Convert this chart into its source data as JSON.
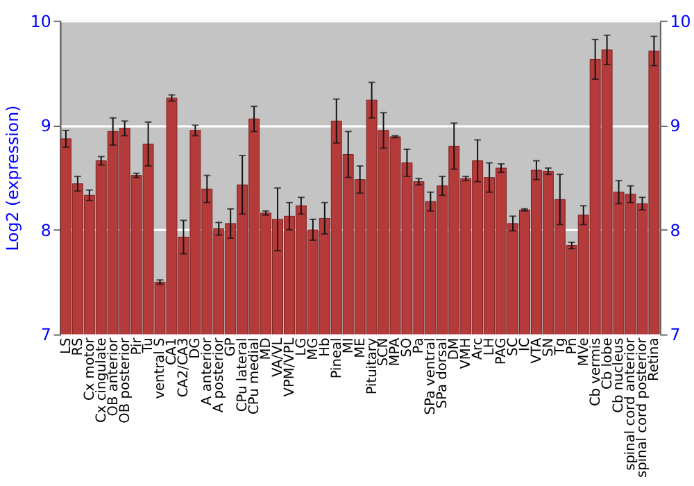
{
  "chart_data": {
    "type": "bar",
    "ylabel": "Log2 (expression)",
    "categories": [
      "LS",
      "RS",
      "Cx motor",
      "Cx cingulate",
      "OB anterior",
      "OB posterior",
      "Pir",
      "Tu",
      "ventral S",
      "CA1",
      "CA2/CA3",
      "DG",
      "A anterior",
      "A posterior",
      "GP",
      "CPu lateral",
      "CPu medial",
      "MD",
      "VA/VL",
      "VPM/VPL",
      "LG",
      "MG",
      "Hb",
      "Pineal",
      "MI",
      "ME",
      "Pituitary",
      "SCN",
      "MPA",
      "SO",
      "Pa",
      "SPa ventral",
      "SPa dorsal",
      "DM",
      "VMH",
      "Arc",
      "LH",
      "PAG",
      "SC",
      "IC",
      "VTA",
      "SN",
      "Tg",
      "Pn",
      "MVe",
      "Cb vermis",
      "Cb lobe",
      "Cb nucleus",
      "spinal cord anterior",
      "spinal cord posterior",
      "Retina"
    ],
    "values": [
      8.87,
      8.44,
      8.33,
      8.66,
      8.94,
      8.97,
      8.52,
      8.82,
      7.5,
      9.26,
      7.93,
      8.95,
      8.39,
      8.01,
      8.06,
      8.43,
      9.06,
      8.16,
      8.1,
      8.13,
      8.23,
      8.0,
      8.11,
      9.04,
      8.72,
      8.48,
      9.24,
      8.95,
      8.89,
      8.64,
      8.46,
      8.27,
      8.42,
      8.8,
      8.49,
      8.66,
      8.5,
      8.59,
      8.06,
      8.19,
      8.57,
      8.56,
      8.29,
      7.85,
      8.14,
      9.63,
      9.72,
      8.36,
      8.34,
      8.25,
      9.71
    ],
    "errors": [
      0.08,
      0.07,
      0.05,
      0.04,
      0.13,
      0.07,
      0.02,
      0.21,
      0.02,
      0.03,
      0.16,
      0.05,
      0.13,
      0.06,
      0.14,
      0.28,
      0.12,
      0.02,
      0.3,
      0.13,
      0.08,
      0.1,
      0.15,
      0.21,
      0.22,
      0.13,
      0.17,
      0.17,
      0.01,
      0.13,
      0.03,
      0.09,
      0.09,
      0.22,
      0.02,
      0.2,
      0.14,
      0.04,
      0.07,
      0.01,
      0.09,
      0.03,
      0.24,
      0.03,
      0.09,
      0.19,
      0.14,
      0.11,
      0.08,
      0.06,
      0.14
    ],
    "color": "#b53a3a",
    "ylim": [
      7,
      10
    ],
    "yticks": [
      7,
      8,
      9,
      10
    ],
    "y2lim": [
      7,
      10
    ],
    "y2ticks": [
      7,
      8,
      9,
      10
    ],
    "grid": "y"
  }
}
